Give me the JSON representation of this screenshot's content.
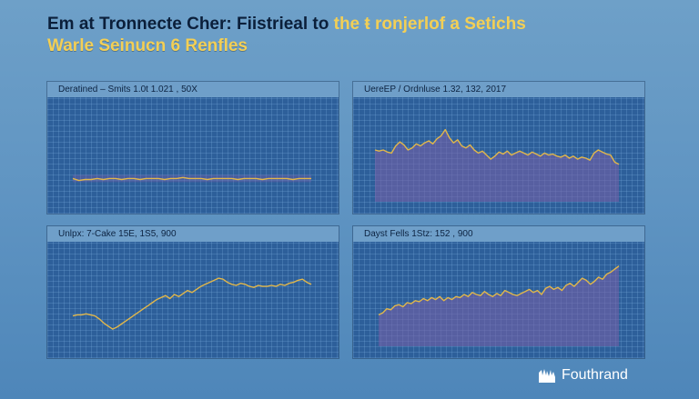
{
  "header": {
    "title_main": "Em at Tronnecte Cher: Fiistrieal to",
    "title_accent": "the ŧ ronjerlof a Setichs",
    "subtitle": "Warle Seinucn 6 Renfles"
  },
  "brand": {
    "name": "Fouthrand",
    "logo_icon": "hands-logo-icon"
  },
  "colors": {
    "panel_bg": "#2d5f9a",
    "panel_header": "#6f9fc9",
    "line": "#e2b74a",
    "fill": "#7a5fa8",
    "accent_text": "#f3cf55"
  },
  "chart_data": [
    {
      "type": "line",
      "title": "Deratined – Smits  1.0t  1.021 , 50X",
      "x_count": 40,
      "ylim": [
        0,
        100
      ],
      "grid": true,
      "series": [
        {
          "values": [
            30,
            28,
            29,
            29,
            30,
            29,
            30,
            30,
            29,
            30,
            30,
            29,
            30,
            30,
            30,
            29,
            30,
            30,
            31,
            30,
            30,
            30,
            29,
            30,
            30,
            30,
            30,
            29,
            30,
            30,
            30,
            29,
            30,
            30,
            30,
            30,
            29,
            30,
            30,
            30
          ]
        }
      ]
    },
    {
      "type": "area",
      "title": "UereEP / Ordnluse  1.32,  132,  2017",
      "x_count": 60,
      "ylim": [
        0,
        100
      ],
      "grid": true,
      "series": [
        {
          "values": [
            58,
            57,
            58,
            56,
            55,
            62,
            66,
            63,
            58,
            60,
            64,
            62,
            65,
            67,
            64,
            69,
            72,
            78,
            70,
            65,
            68,
            62,
            60,
            63,
            58,
            55,
            57,
            53,
            49,
            52,
            56,
            54,
            57,
            53,
            55,
            57,
            55,
            53,
            56,
            54,
            52,
            55,
            53,
            54,
            52,
            51,
            53,
            50,
            52,
            49,
            51,
            50,
            48,
            55,
            58,
            56,
            54,
            53,
            46,
            44
          ]
        }
      ]
    },
    {
      "type": "line",
      "title": "Unlpx:  7-Cake  15E,  1S5,  900",
      "x_count": 55,
      "ylim": [
        0,
        100
      ],
      "grid": true,
      "series": [
        {
          "values": [
            37,
            38,
            38,
            39,
            38,
            37,
            34,
            30,
            27,
            24,
            26,
            29,
            32,
            35,
            38,
            41,
            44,
            47,
            50,
            53,
            55,
            57,
            54,
            58,
            56,
            59,
            62,
            60,
            63,
            66,
            68,
            70,
            72,
            74,
            73,
            70,
            68,
            67,
            69,
            68,
            66,
            65,
            67,
            66,
            66,
            67,
            66,
            68,
            67,
            69,
            70,
            72,
            73,
            70,
            68
          ]
        }
      ]
    },
    {
      "type": "area",
      "title": "Dayst  Fells  1Stz:  152 , 900",
      "x_count": 60,
      "ylim": [
        0,
        100
      ],
      "grid": true,
      "series": [
        {
          "values": [
            38,
            40,
            44,
            43,
            47,
            48,
            46,
            50,
            49,
            52,
            51,
            54,
            52,
            55,
            53,
            56,
            52,
            55,
            53,
            56,
            55,
            58,
            56,
            60,
            58,
            57,
            61,
            58,
            56,
            59,
            57,
            62,
            60,
            58,
            57,
            59,
            61,
            63,
            60,
            62,
            58,
            64,
            66,
            63,
            65,
            62,
            67,
            69,
            66,
            70,
            74,
            72,
            68,
            71,
            75,
            73,
            78,
            80,
            83,
            86
          ]
        }
      ]
    }
  ]
}
